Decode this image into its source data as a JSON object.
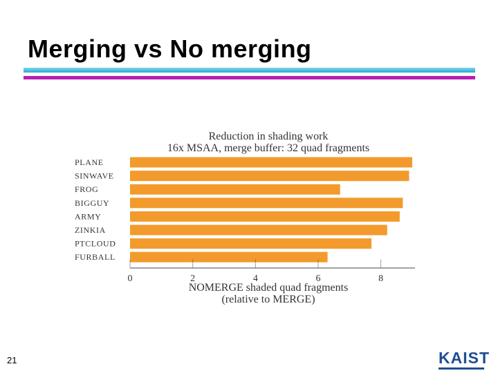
{
  "slide": {
    "title": "Merging vs No merging",
    "page_number": "21",
    "logo_text": "KAIST"
  },
  "colors": {
    "bar": "#f39a2c",
    "axis": "#444444",
    "accent_cyan": "#29a9d3",
    "accent_magenta": "#b61fb3",
    "logo": "#1d4f91"
  },
  "chart_data": {
    "type": "bar",
    "orientation": "horizontal",
    "title": "Reduction in shading work",
    "subtitle": "16x MSAA, merge buffer: 32 quad fragments",
    "xlabel": "NOMERGE shaded quad fragments",
    "xlabel_line2": "(relative to MERGE)",
    "ylabel": "",
    "categories": [
      "PLANE",
      "SINWAVE",
      "FROG",
      "BIGGUY",
      "ARMY",
      "ZINKIA",
      "PTCLOUD",
      "FURBALL"
    ],
    "values": [
      9.0,
      8.9,
      6.7,
      8.7,
      8.6,
      8.2,
      7.7,
      6.3
    ],
    "xlim": [
      0,
      9.0
    ],
    "xticks": [
      0,
      2,
      4,
      6,
      8
    ],
    "grid": false,
    "legend": "none"
  }
}
